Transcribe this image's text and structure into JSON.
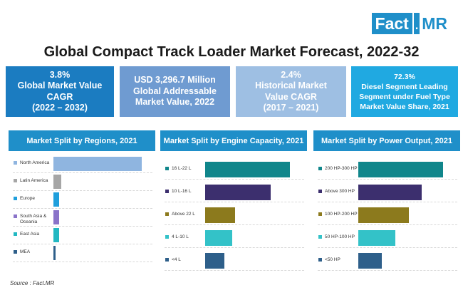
{
  "logo": {
    "main": "Fact",
    "dot": ".",
    "accent": "MR"
  },
  "title": "Global Compact Track Loader Market Forecast, 2022-32",
  "stats": [
    {
      "text": "3.8%\nGlobal Market Value\nCAGR\n(2022 – 2032)",
      "color": "#1b7cc1"
    },
    {
      "text": "USD 3,296.7 Million\nGlobal Addressable\nMarket Value, 2022",
      "color": "#6f9bd1"
    },
    {
      "text": "2.4%\nHistorical Market\nValue CAGR\n(2017 – 2021)",
      "color": "#9ebfe3"
    },
    {
      "text": "72.3%\nDiesel Segment Leading\nSegment under Fuel Type\nMarket Value Share, 2021",
      "color": "#20a9e1"
    }
  ],
  "source": "Source : Fact.MR",
  "chart_data": [
    {
      "type": "bar",
      "orientation": "horizontal",
      "title": "Market Split by Regions, 2021",
      "categories": [
        "North America",
        "Latin America",
        "Europe",
        "South Asia & Oceania",
        "East Asia",
        "MEA"
      ],
      "values": [
        46,
        4,
        3,
        3,
        3,
        1
      ],
      "colors": [
        "#8fb5e0",
        "#a6a6a6",
        "#1f9fdc",
        "#8a73c9",
        "#22b8c2",
        "#2e5f8a"
      ],
      "xlim": [
        0,
        50
      ],
      "grid": false
    },
    {
      "type": "bar",
      "orientation": "horizontal",
      "title": "Market Split by Engine Capacity, 2021",
      "categories": [
        "16 L-22 L",
        "10 L-16 L",
        "Above 22 L",
        "4 L-10 L",
        "<4 L"
      ],
      "values": [
        31,
        24,
        11,
        10,
        7
      ],
      "colors": [
        "#10868b",
        "#3c2f6e",
        "#8c7a1d",
        "#33c2c8",
        "#2e5f8a"
      ],
      "xlim": [
        0,
        34
      ],
      "grid": false
    },
    {
      "type": "bar",
      "orientation": "horizontal",
      "title": "Market Split by Power Output, 2021",
      "categories": [
        "200 HP-300 HP",
        "Above 300 HP",
        "100 HP-200 HP",
        "50 HP-100 HP",
        "<50 HP"
      ],
      "values": [
        32,
        24,
        19,
        14,
        9
      ],
      "colors": [
        "#10868b",
        "#3c2f6e",
        "#8c7a1d",
        "#33c2c8",
        "#2e5f8a"
      ],
      "xlim": [
        0,
        35
      ],
      "grid": false
    }
  ]
}
